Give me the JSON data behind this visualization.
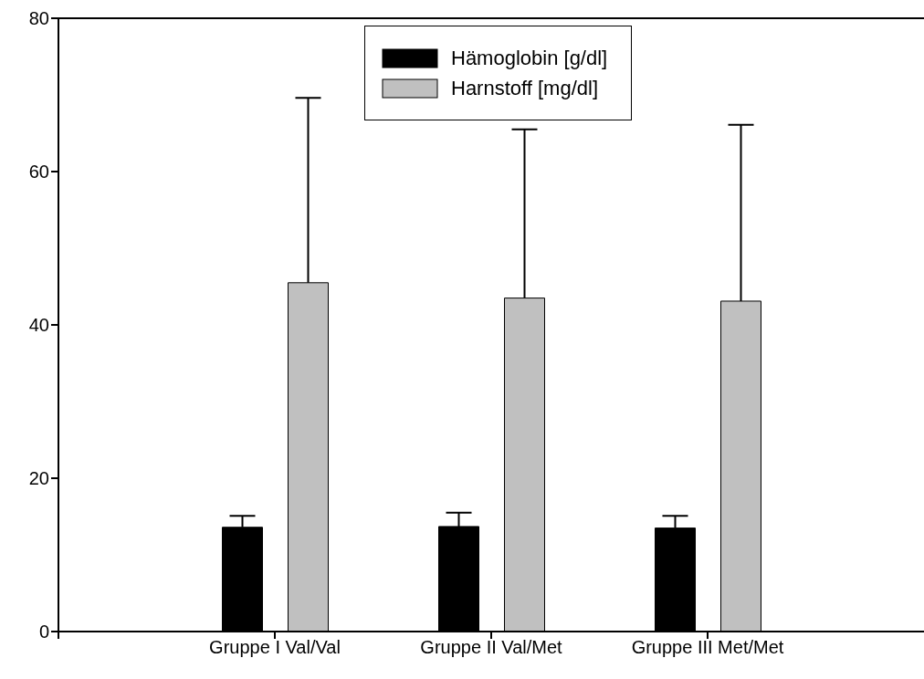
{
  "chart_data": {
    "type": "bar",
    "categories": [
      null,
      "Gruppe I Val/Val",
      "Gruppe II Val/Met",
      "Gruppe III Met/Met",
      null
    ],
    "series": [
      {
        "name": "Hämoglobin [g/dl]",
        "color": "#000000",
        "values": [
          null,
          13.6,
          13.7,
          13.5,
          null
        ],
        "errors": [
          null,
          [
            13.6,
            15.1
          ],
          [
            13.7,
            15.5
          ],
          [
            13.5,
            15.1
          ],
          null
        ]
      },
      {
        "name": "Harnstoff [mg/dl]",
        "color": "#c0c0c0",
        "values": [
          null,
          45.5,
          43.5,
          43.1,
          null
        ],
        "errors": [
          null,
          [
            45.5,
            69.6
          ],
          [
            43.5,
            65.5
          ],
          [
            43.1,
            66.1
          ],
          null
        ]
      }
    ],
    "ylim": [
      0,
      80
    ],
    "yticks": [
      0,
      20,
      40,
      60,
      80
    ],
    "legend": "top"
  }
}
